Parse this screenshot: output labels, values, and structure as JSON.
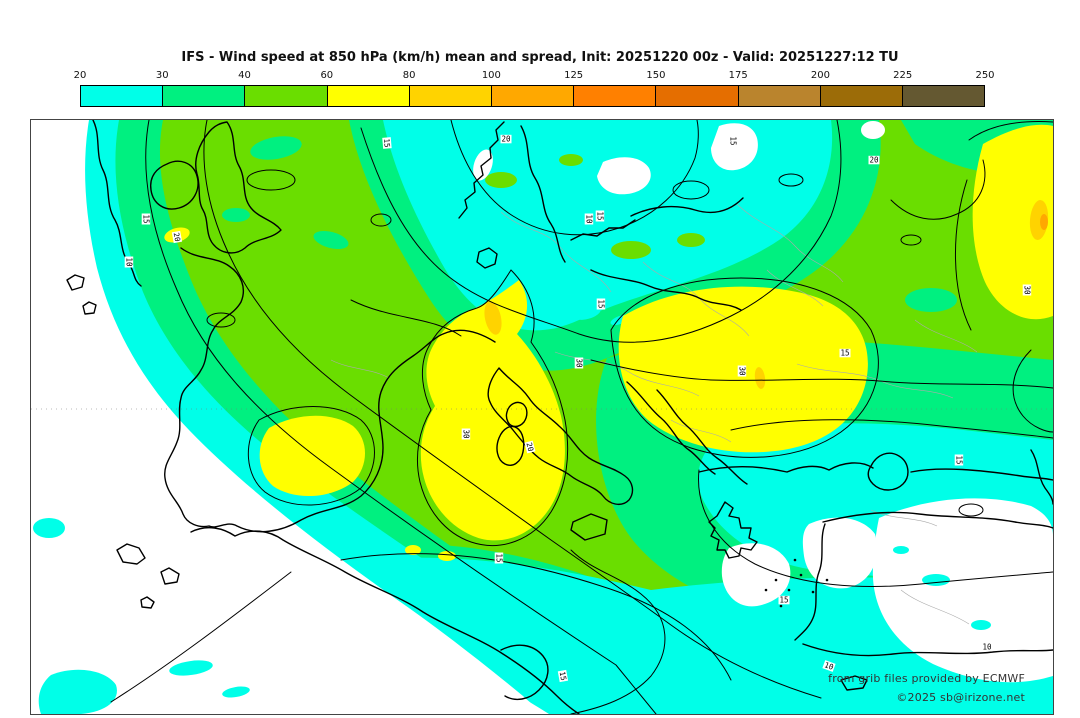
{
  "title": "IFS - Wind speed at 850 hPa (km/h) mean and spread, Init: 20251220 00z - Valid: 20251227:12 TU",
  "colorbar": {
    "tick_labels": [
      "20",
      "30",
      "40",
      "60",
      "80",
      "100",
      "125",
      "150",
      "175",
      "200",
      "225",
      "250"
    ],
    "segments": [
      {
        "from": "20",
        "to": "30",
        "color": "#00FFE8"
      },
      {
        "from": "30",
        "to": "40",
        "color": "#00F080"
      },
      {
        "from": "40",
        "to": "60",
        "color": "#6ADE00"
      },
      {
        "from": "60",
        "to": "80",
        "color": "#FFFF00"
      },
      {
        "from": "80",
        "to": "100",
        "color": "#FFD300"
      },
      {
        "from": "100",
        "to": "125",
        "color": "#FFA800"
      },
      {
        "from": "125",
        "to": "150",
        "color": "#FF8000"
      },
      {
        "from": "150",
        "to": "175",
        "color": "#E56E00"
      },
      {
        "from": "175",
        "to": "200",
        "color": "#BA842D"
      },
      {
        "from": "200",
        "to": "225",
        "color": "#9C6C08"
      },
      {
        "from": "225",
        "to": "250",
        "color": "#645831"
      }
    ],
    "units": "km/h"
  },
  "map": {
    "fill_colors": {
      "below_min": "#FFFFFF",
      "cyan_20_30": "#00FFE8",
      "springgreen_30_40": "#00F080",
      "green_40_60": "#6ADE00",
      "yellow_60_80": "#FFFF00",
      "gold_80_100": "#FFD300",
      "orange_100_125": "#FFA800"
    },
    "contour_labels": [
      "15",
      "20",
      "10",
      "15",
      "20",
      "10",
      "15",
      "15",
      "15",
      "20",
      "30",
      "30",
      "30",
      "20",
      "15",
      "30",
      "15",
      "15",
      "15",
      "10",
      "10",
      "15"
    ],
    "attribution_line1": "from grib files provided by ECMWF",
    "attribution_line2": "©2025 sb@irizone.net"
  }
}
